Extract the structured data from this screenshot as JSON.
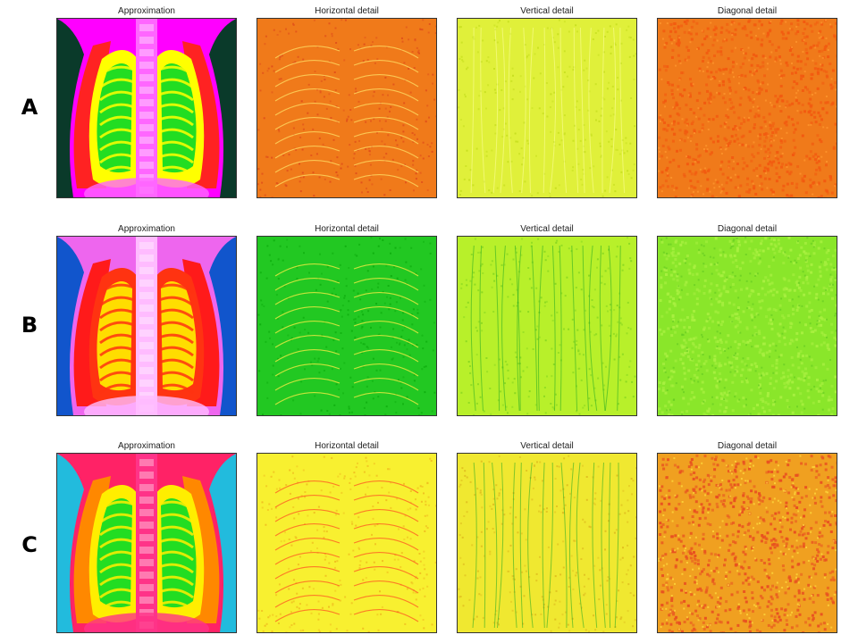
{
  "rows": [
    {
      "label": "A",
      "panels": [
        {
          "title": "Approximation",
          "kind": "approx",
          "palette": {
            "bg": "#ff00ff",
            "lung": "#22dd22",
            "ring": "#ffff00",
            "edge": "#ff2222",
            "dark": "#0a3a2a",
            "spine": "#ff66ff"
          }
        },
        {
          "title": "Horizontal detail",
          "kind": "horiz",
          "palette": {
            "base": "#f07a1a",
            "noise": "#e0501a",
            "line": "#ffe066"
          }
        },
        {
          "title": "Vertical detail",
          "kind": "vert",
          "palette": {
            "base": "#e0f03a",
            "noise": "#c8e020",
            "line": "#ffffa0"
          }
        },
        {
          "title": "Diagonal detail",
          "kind": "diag",
          "palette": {
            "base": "#f07a1a",
            "noise": "#f25a10",
            "line": "#ff9a30"
          }
        }
      ]
    },
    {
      "label": "B",
      "panels": [
        {
          "title": "Approximation",
          "kind": "approx",
          "palette": {
            "bg": "#ee66ee",
            "lung": "#ffdd00",
            "ring": "#ff3311",
            "edge": "#ff1a1a",
            "dark": "#1155cc",
            "spine": "#ffbbff"
          }
        },
        {
          "title": "Horizontal detail",
          "kind": "horiz",
          "palette": {
            "base": "#22c822",
            "noise": "#10b010",
            "line": "#ffee44"
          }
        },
        {
          "title": "Vertical detail",
          "kind": "vert",
          "palette": {
            "base": "#b8f02a",
            "noise": "#8ad820",
            "line": "#22aa22"
          }
        },
        {
          "title": "Diagonal detail",
          "kind": "diag",
          "palette": {
            "base": "#8ae62a",
            "noise": "#a8f040",
            "line": "#66cc22"
          }
        }
      ]
    },
    {
      "label": "C",
      "panels": [
        {
          "title": "Approximation",
          "kind": "approx",
          "palette": {
            "bg": "#ff2266",
            "lung": "#22dd22",
            "ring": "#ffee00",
            "edge": "#ff8800",
            "dark": "#22bbdd",
            "spine": "#ff3388"
          }
        },
        {
          "title": "Horizontal detail",
          "kind": "horiz",
          "palette": {
            "base": "#f8f030",
            "noise": "#f0c020",
            "line": "#ff5522"
          }
        },
        {
          "title": "Vertical detail",
          "kind": "vert",
          "palette": {
            "base": "#f0e830",
            "noise": "#e0c020",
            "line": "#22aa22"
          }
        },
        {
          "title": "Diagonal detail",
          "kind": "diag",
          "palette": {
            "base": "#f0a020",
            "noise": "#e85020",
            "line": "#ffe040"
          }
        }
      ]
    }
  ]
}
